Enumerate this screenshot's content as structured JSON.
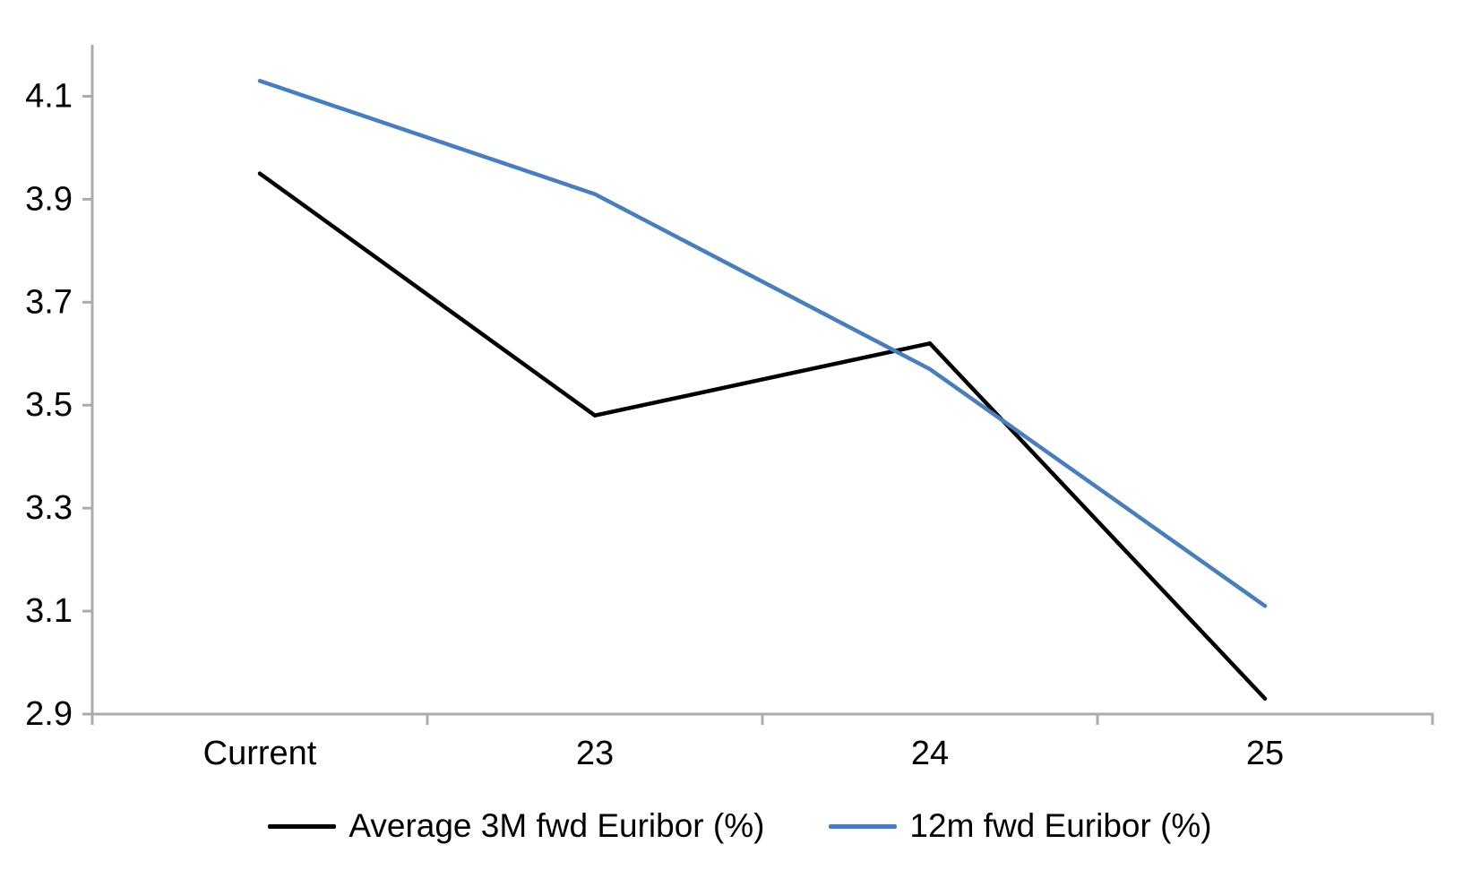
{
  "chart_data": {
    "type": "line",
    "title": "",
    "xlabel": "",
    "ylabel": "",
    "categories": [
      "Current",
      "23",
      "24",
      "25"
    ],
    "series": [
      {
        "name": "Average 3M fwd Euribor (%)",
        "color": "#000000",
        "values": [
          3.95,
          3.48,
          3.62,
          2.93
        ]
      },
      {
        "name": "12m fwd Euribor (%)",
        "color": "#4a7ebb",
        "values": [
          4.13,
          3.91,
          3.57,
          3.11
        ]
      }
    ],
    "y_axis": {
      "tick_labels": [
        "2.9",
        "3.1",
        "3.3",
        "3.5",
        "3.7",
        "3.9",
        "4.1"
      ],
      "tick_values": [
        2.9,
        3.1,
        3.3,
        3.5,
        3.7,
        3.9,
        4.1
      ],
      "min": 2.9,
      "max": 4.2
    },
    "x_axis": {
      "tick_labels": [
        "Current",
        "23",
        "24",
        "25"
      ]
    },
    "grid": false,
    "legend_position": "bottom",
    "axis_color": "#ababab"
  }
}
